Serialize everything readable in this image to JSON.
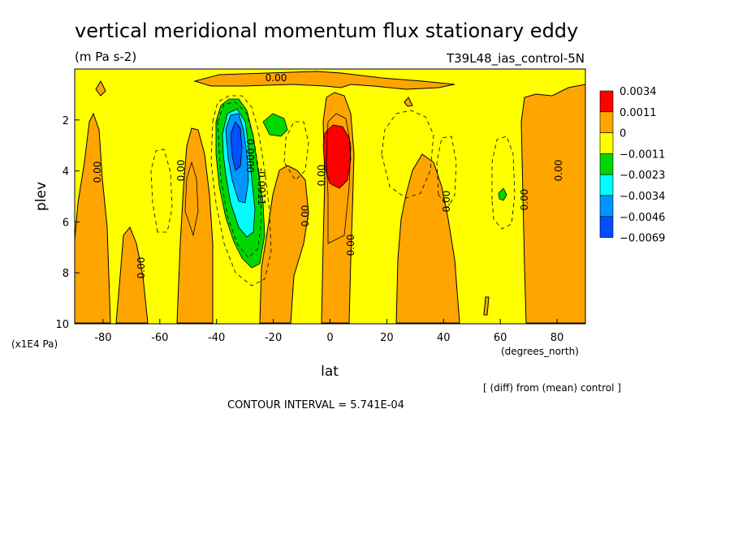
{
  "title": "vertical meridional momentum flux stationary eddy",
  "units": "(m Pa s-2)",
  "run_label": "T39L48_ias_control-5N",
  "diff_note": "[ (diff) from (mean) control ]",
  "contour_interval": "CONTOUR INTERVAL = 5.741E-04",
  "colors": {
    "red": "#ff0000",
    "orange": "#ffa500",
    "yellow": "#ffff00",
    "green": "#00d700",
    "cyan": "#00ffff",
    "skyblue": "#0096ff",
    "blue": "#0050ff"
  },
  "chart_data": {
    "type": "heatmap",
    "title": "vertical meridional momentum flux stationary eddy",
    "xlabel": "lat",
    "x_unit": "(degrees_north)",
    "ylabel": "plev",
    "y_unit": "(x1E4 Pa)",
    "xlim": [
      -90,
      90
    ],
    "ylim": [
      10,
      0
    ],
    "x_ticks": [
      "-80",
      "-60",
      "-40",
      "-20",
      "0",
      "20",
      "40",
      "60",
      "80"
    ],
    "y_ticks": [
      "2",
      "4",
      "6",
      "8",
      "10"
    ],
    "legend": [
      {
        "label": "0.0034",
        "color": "#ff0000"
      },
      {
        "label": "0.0011",
        "color": "#ffa500"
      },
      {
        "label": "0",
        "color": "#ffff00"
      },
      {
        "label": "−0.0011",
        "color": "#00d700"
      },
      {
        "label": "−0.0023",
        "color": "#00ffff"
      },
      {
        "label": "−0.0034",
        "color": "#0096ff"
      },
      {
        "label": "−0.0046",
        "color": "#0050ff"
      },
      {
        "label": "−0.0069",
        "color": ""
      }
    ],
    "contour_labels": [
      "0.00",
      "0.00",
      "0.00",
      "0.00",
      "0.00",
      "0.00",
      "0.00",
      "0.00",
      "0.00",
      "0.00",
      "0.0000",
      "-0.0011"
    ]
  }
}
